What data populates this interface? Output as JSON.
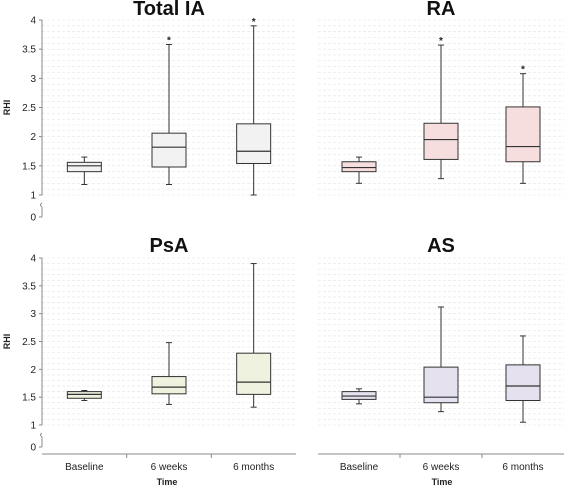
{
  "chart_data": [
    {
      "type": "box",
      "title": "Total IA",
      "xlabel": "",
      "ylabel": "RHI",
      "categories": [
        "Baseline",
        "6 weeks",
        "6 months"
      ],
      "ylim": [
        0,
        4
      ],
      "yticks": [
        "0",
        "1",
        "1.5",
        "2",
        "2.5",
        "3",
        "3.5",
        "4"
      ],
      "axis_break": true,
      "color": "#f2f2f2",
      "boxes": [
        {
          "min": 1.18,
          "q1": 1.4,
          "median": 1.5,
          "q3": 1.56,
          "max": 1.65,
          "marker": ""
        },
        {
          "min": 1.18,
          "q1": 1.48,
          "median": 1.82,
          "q3": 2.06,
          "max": 3.58,
          "marker": "*"
        },
        {
          "min": 1.0,
          "q1": 1.54,
          "median": 1.75,
          "q3": 2.22,
          "max": 3.9,
          "marker": "*"
        }
      ]
    },
    {
      "type": "box",
      "title": "RA",
      "xlabel": "",
      "ylabel": "",
      "categories": [
        "Baseline",
        "6 weeks",
        "6 months"
      ],
      "ylim": [
        0,
        4
      ],
      "yticks": [
        "",
        "",
        "",
        "",
        "",
        "",
        "",
        ""
      ],
      "axis_break": false,
      "color": "#f6dede",
      "boxes": [
        {
          "min": 1.2,
          "q1": 1.4,
          "median": 1.47,
          "q3": 1.57,
          "max": 1.65,
          "marker": ""
        },
        {
          "min": 1.28,
          "q1": 1.61,
          "median": 1.95,
          "q3": 2.23,
          "max": 3.57,
          "marker": "*"
        },
        {
          "min": 1.2,
          "q1": 1.57,
          "median": 1.83,
          "q3": 2.51,
          "max": 3.08,
          "marker": "*"
        }
      ]
    },
    {
      "type": "box",
      "title": "PsA",
      "xlabel": "",
      "ylabel": "RHI",
      "categories": [
        "Baseline",
        "6 weeks",
        "6 months"
      ],
      "ylim": [
        0,
        4
      ],
      "yticks": [
        "0",
        "1",
        "1.5",
        "2",
        "2.5",
        "3",
        "3.5",
        "4"
      ],
      "axis_break": true,
      "color": "#eef2de",
      "boxes": [
        {
          "min": 1.44,
          "q1": 1.48,
          "median": 1.55,
          "q3": 1.6,
          "max": 1.62,
          "marker": ""
        },
        {
          "min": 1.37,
          "q1": 1.56,
          "median": 1.68,
          "q3": 1.87,
          "max": 2.48,
          "marker": ""
        },
        {
          "min": 1.32,
          "q1": 1.55,
          "median": 1.77,
          "q3": 2.29,
          "max": 3.9,
          "marker": ""
        }
      ]
    },
    {
      "type": "box",
      "title": "AS",
      "xlabel": "Time",
      "ylabel": "",
      "categories": [
        "Baseline",
        "6 weeks",
        "6 months"
      ],
      "ylim": [
        0,
        4
      ],
      "yticks": [
        "",
        "",
        "",
        "",
        "",
        "",
        "",
        ""
      ],
      "axis_break": false,
      "color": "#e5e1ee",
      "boxes": [
        {
          "min": 1.38,
          "q1": 1.46,
          "median": 1.52,
          "q3": 1.6,
          "max": 1.65,
          "marker": ""
        },
        {
          "min": 1.24,
          "q1": 1.4,
          "median": 1.5,
          "q3": 2.04,
          "max": 3.12,
          "marker": ""
        },
        {
          "min": 1.05,
          "q1": 1.44,
          "median": 1.7,
          "q3": 2.08,
          "max": 2.6,
          "marker": ""
        }
      ]
    }
  ],
  "x_axis_title": "Time"
}
